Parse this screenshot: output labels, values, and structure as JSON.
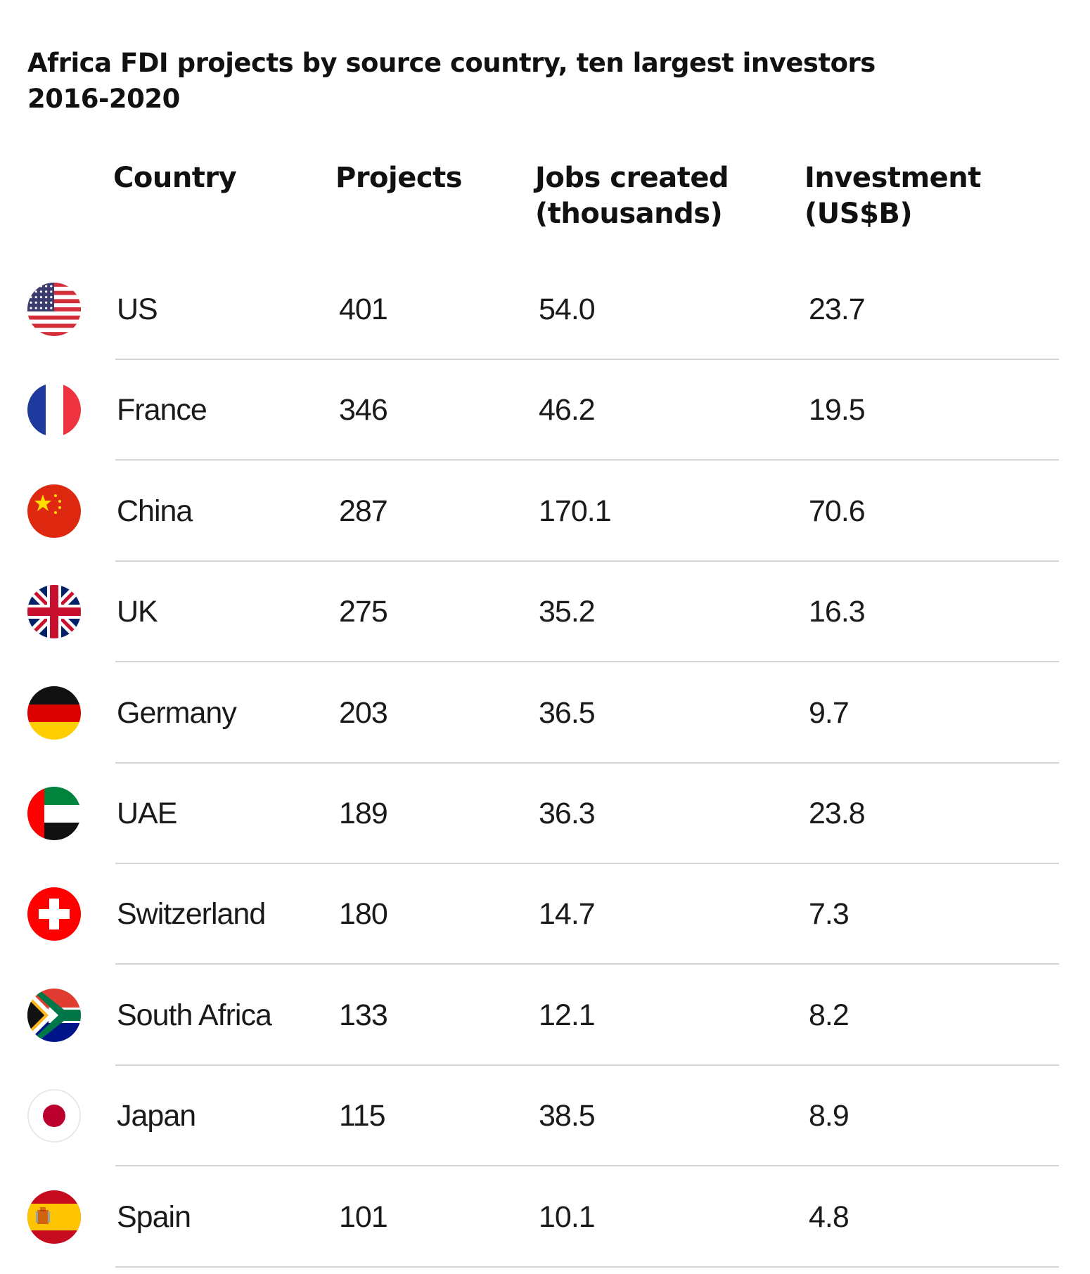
{
  "title": {
    "line1": "Africa FDI projects by source country, ten largest investors",
    "line2": "2016-2020"
  },
  "headers": {
    "country": "Country",
    "projects": "Projects",
    "jobs_line1": "Jobs created",
    "jobs_line2": "(thousands)",
    "investment_line1": "Investment",
    "investment_line2": "(US$B)"
  },
  "rows": [
    {
      "country": "US",
      "projects": "401",
      "jobs": "54.0",
      "investment": "23.7",
      "flag_icon": "us-flag-icon"
    },
    {
      "country": "France",
      "projects": "346",
      "jobs": "46.2",
      "investment": "19.5",
      "flag_icon": "france-flag-icon"
    },
    {
      "country": "China",
      "projects": "287",
      "jobs": "170.1",
      "investment": "70.6",
      "flag_icon": "china-flag-icon"
    },
    {
      "country": "UK",
      "projects": "275",
      "jobs": "35.2",
      "investment": "16.3",
      "flag_icon": "uk-flag-icon"
    },
    {
      "country": "Germany",
      "projects": "203",
      "jobs": "36.5",
      "investment": "9.7",
      "flag_icon": "germany-flag-icon"
    },
    {
      "country": "UAE",
      "projects": "189",
      "jobs": "36.3",
      "investment": "23.8",
      "flag_icon": "uae-flag-icon"
    },
    {
      "country": "Switzerland",
      "projects": "180",
      "jobs": "14.7",
      "investment": "7.3",
      "flag_icon": "switzerland-flag-icon"
    },
    {
      "country": "South Africa",
      "projects": "133",
      "jobs": "12.1",
      "investment": "8.2",
      "flag_icon": "south-africa-flag-icon"
    },
    {
      "country": "Japan",
      "projects": "115",
      "jobs": "38.5",
      "investment": "8.9",
      "flag_icon": "japan-flag-icon"
    },
    {
      "country": "Spain",
      "projects": "101",
      "jobs": "10.1",
      "investment": "4.8",
      "flag_icon": "spain-flag-icon"
    }
  ],
  "chart_data": {
    "type": "table",
    "title": "Africa FDI projects by source country, ten largest investors 2016-2020",
    "columns": [
      "Country",
      "Projects",
      "Jobs created (thousands)",
      "Investment (US$B)"
    ],
    "rows": [
      [
        "US",
        401,
        54.0,
        23.7
      ],
      [
        "France",
        346,
        46.2,
        19.5
      ],
      [
        "China",
        287,
        170.1,
        70.6
      ],
      [
        "UK",
        275,
        35.2,
        16.3
      ],
      [
        "Germany",
        203,
        36.5,
        9.7
      ],
      [
        "UAE",
        189,
        36.3,
        23.8
      ],
      [
        "Switzerland",
        180,
        14.7,
        7.3
      ],
      [
        "South Africa",
        133,
        12.1,
        8.2
      ],
      [
        "Japan",
        115,
        38.5,
        8.9
      ],
      [
        "Spain",
        101,
        10.1,
        4.8
      ]
    ]
  }
}
